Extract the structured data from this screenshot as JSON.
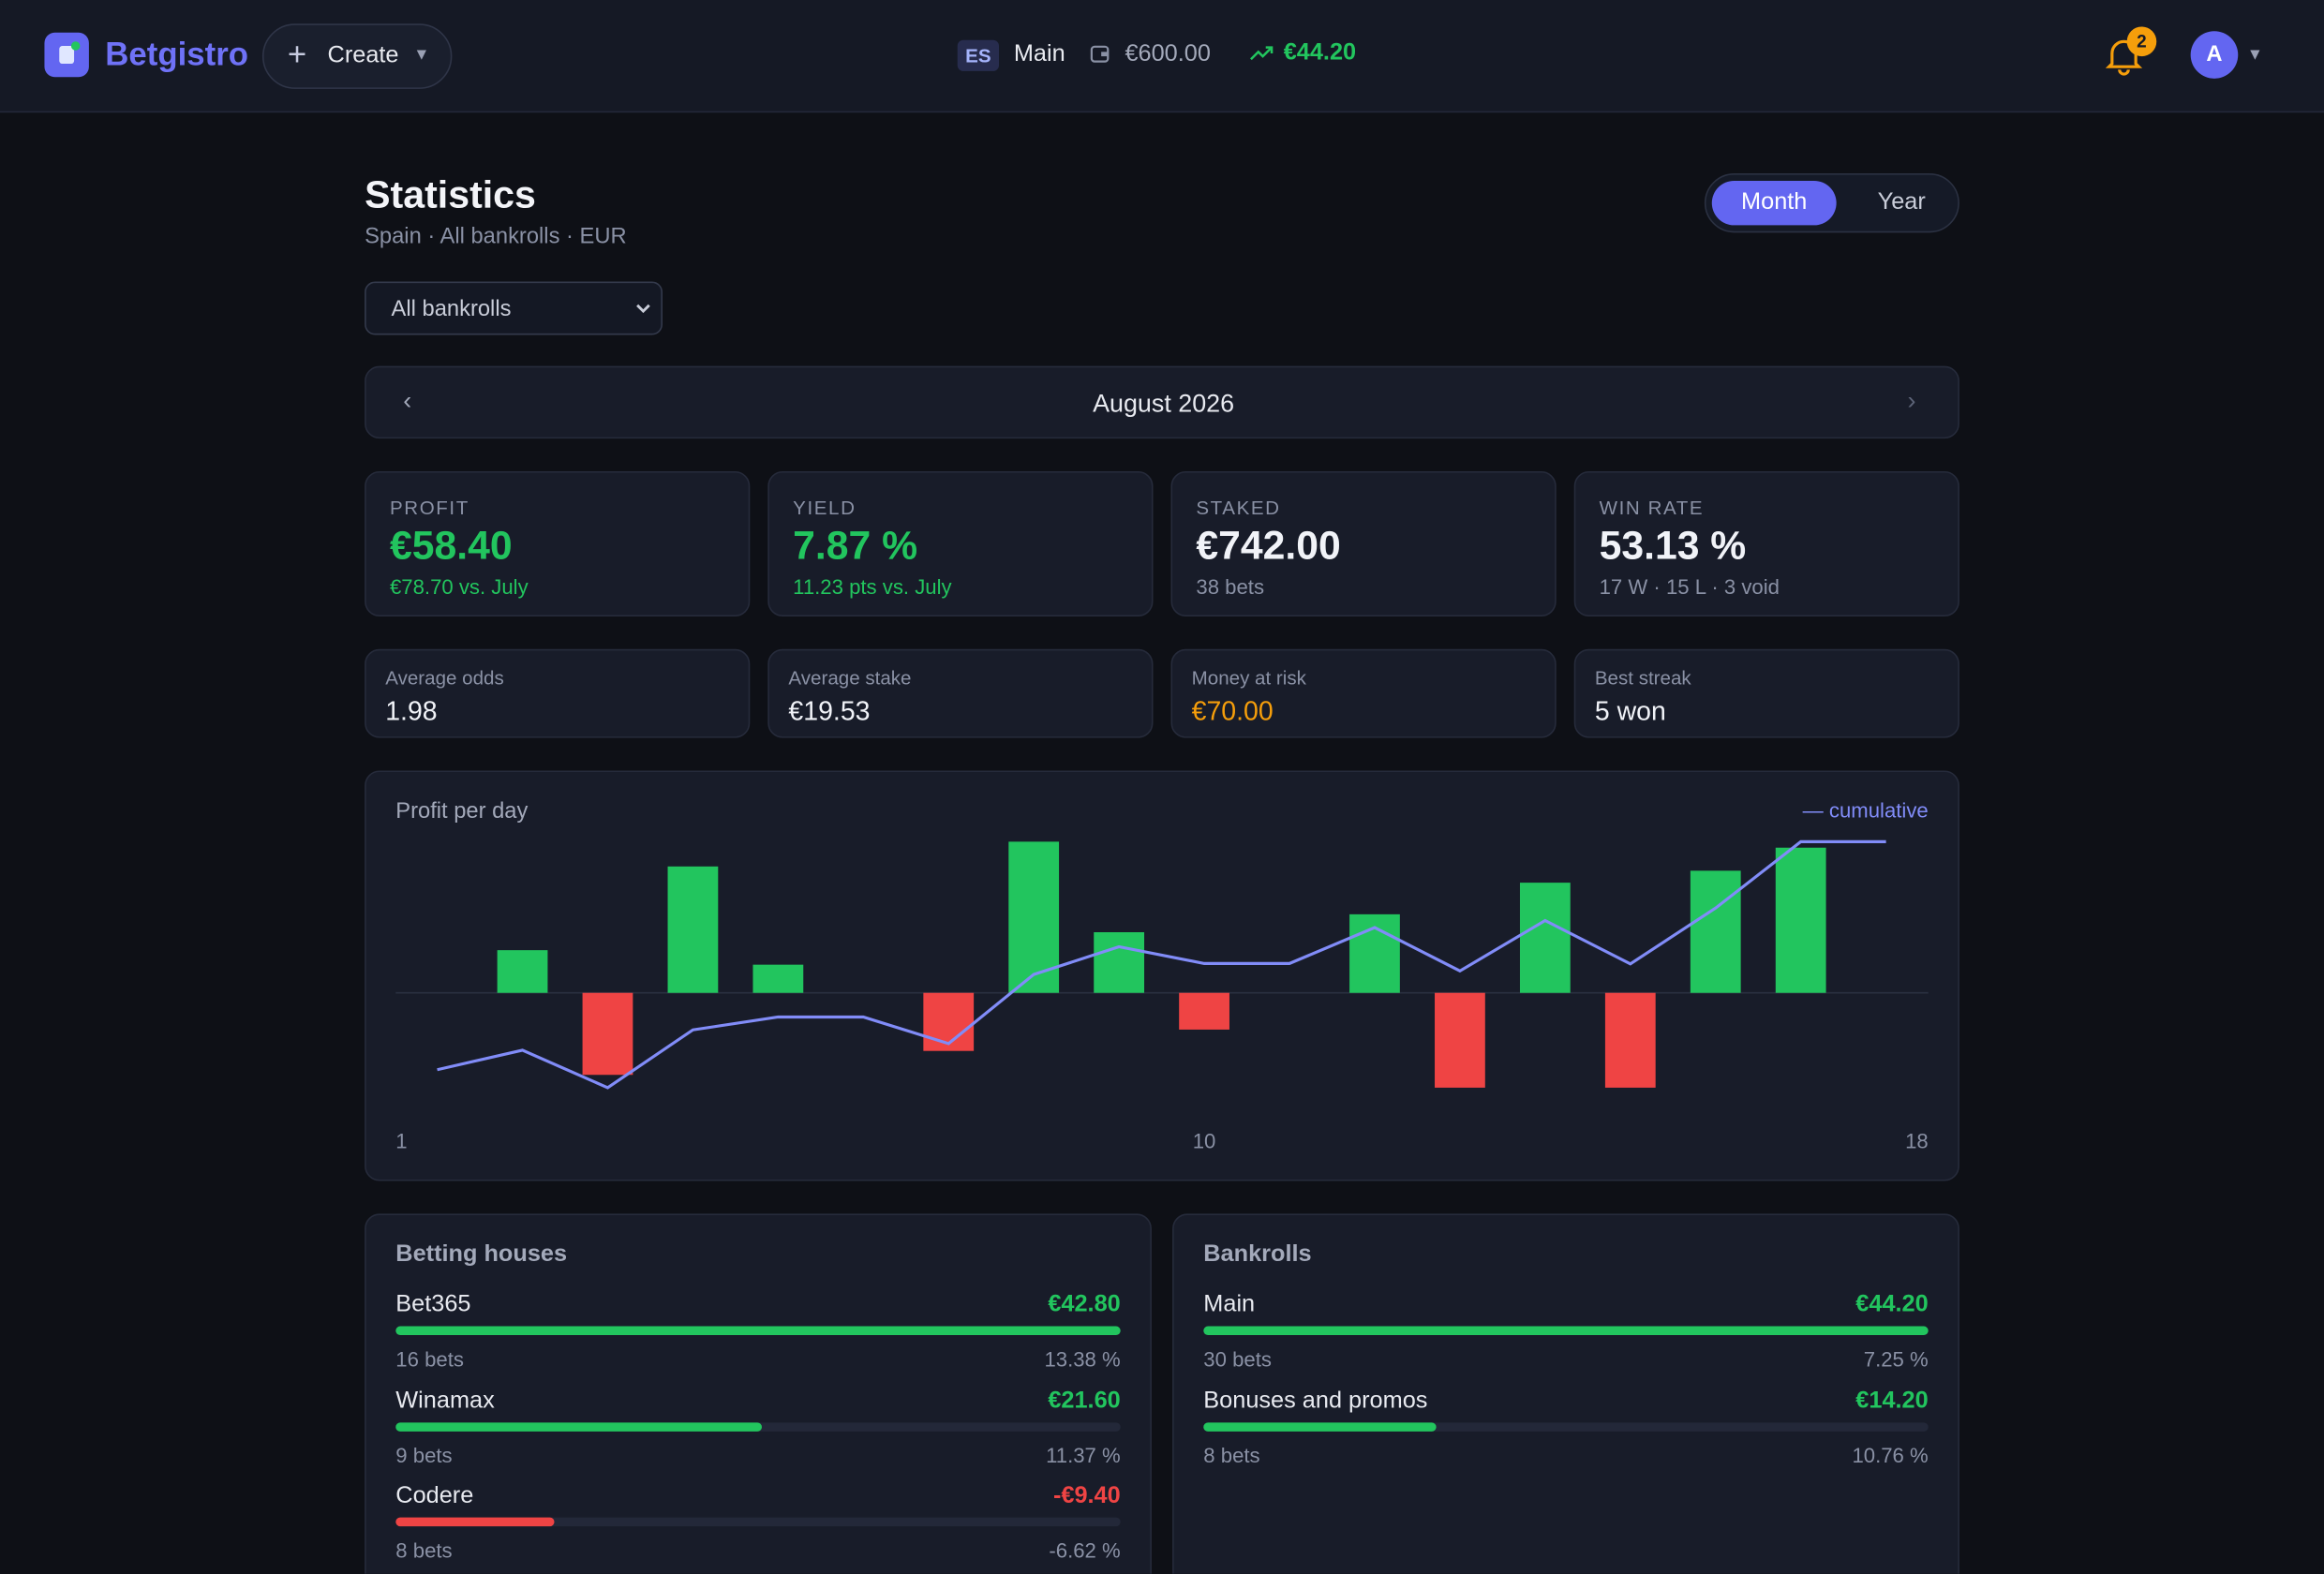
{
  "header": {
    "brand": "Betgistro",
    "create": "Create",
    "country": "ES",
    "bankroll": "Main",
    "balance": "€600.00",
    "profit": "€44.20",
    "notifications": "2",
    "avatar": "A"
  },
  "page": {
    "title": "Statistics",
    "subtitle": "Spain · All bankrolls · EUR",
    "filter": "All bankrolls",
    "periods": [
      "Month",
      "Year"
    ],
    "active_period": 0,
    "month": "August 2026"
  },
  "kpis": [
    {
      "label": "PROFIT",
      "value": "€58.40",
      "note": "€78.70 vs. July",
      "tone": "positive"
    },
    {
      "label": "YIELD",
      "value": "7.87 %",
      "note": "11.23 pts vs. July",
      "tone": "positive"
    },
    {
      "label": "STAKED",
      "value": "€742.00",
      "note": "38 bets",
      "tone": "neutral"
    },
    {
      "label": "WIN RATE",
      "value": "53.13 %",
      "note": "17 W · 15 L · 3 void",
      "tone": "neutral"
    }
  ],
  "details": [
    {
      "label": "Average odds",
      "value": "1.98",
      "tone": "neutral"
    },
    {
      "label": "Average stake",
      "value": "€19.53",
      "tone": "neutral"
    },
    {
      "label": "Money at risk",
      "value": "€70.00",
      "tone": "warning"
    },
    {
      "label": "Best streak",
      "value": "5 won",
      "tone": "neutral"
    }
  ],
  "chart_data": {
    "type": "bar",
    "title": "Profit per day",
    "categories": [
      "1",
      null,
      null,
      null,
      null,
      null,
      null,
      null,
      null,
      "10",
      null,
      null,
      null,
      null,
      null,
      null,
      null,
      "18"
    ],
    "values": [
      0,
      5.0,
      -9.6,
      14.8,
      3.3,
      0,
      -6.8,
      17.7,
      7.1,
      -4.3,
      0,
      9.2,
      -11.1,
      12.9,
      -11.1,
      14.3,
      17.0,
      0
    ],
    "colors": {
      "positive": "#22c55e",
      "negative": "#ef4444"
    },
    "line": {
      "name": "— cumulative",
      "color": "#818cf8"
    }
  },
  "betting_houses": {
    "title": "Betting houses",
    "rows": [
      {
        "name": "Bet365",
        "value": 42.8,
        "value_label": "€42.80",
        "bets": "16 bets",
        "share": "13.38 %"
      },
      {
        "name": "Winamax",
        "value": 21.6,
        "value_label": "€21.60",
        "bets": "9 bets",
        "share": "11.37 %"
      },
      {
        "name": "Codere",
        "value": -9.4,
        "value_label": "-€9.40",
        "bets": "8 bets",
        "share": "-6.62 %"
      }
    ]
  },
  "bankrolls": {
    "title": "Bankrolls",
    "rows": [
      {
        "name": "Main",
        "value": 44.2,
        "value_label": "€44.20",
        "bets": "30 bets",
        "share": "7.25 %"
      },
      {
        "name": "Bonuses and promos",
        "value": 14.2,
        "value_label": "€14.20",
        "bets": "8 bets",
        "share": "10.76 %"
      }
    ]
  },
  "colors": {
    "positive": "#22c55e",
    "negative": "#ef4444",
    "warning": "#f59e0b",
    "neutral": "#f1f3f8",
    "accent": "#6366f1"
  }
}
